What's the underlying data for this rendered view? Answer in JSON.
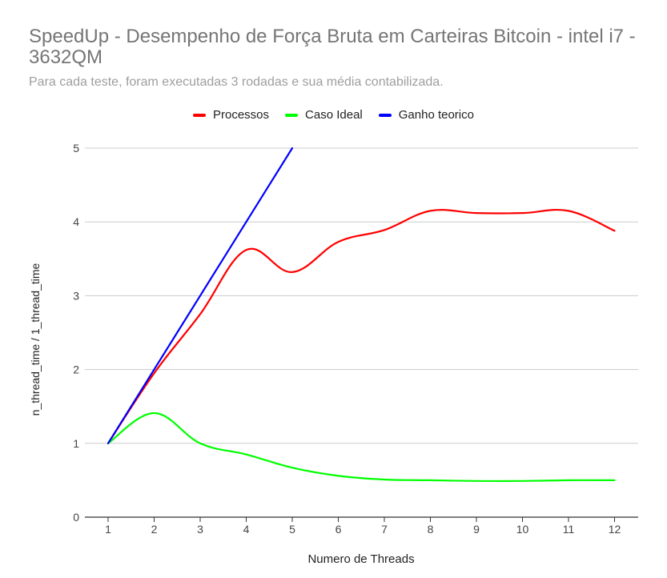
{
  "chart_data": {
    "type": "line",
    "title": "SpeedUp - Desempenho de Força Bruta em Carteiras Bitcoin - intel i7 - 3632QM",
    "subtitle": "Para cada teste, foram executadas 3 rodadas e sua média contabilizada.",
    "xlabel": "Numero de Threads",
    "ylabel": "n_thread_time / 1_thread_time",
    "x": [
      1,
      2,
      3,
      4,
      5,
      6,
      7,
      8,
      9,
      10,
      11,
      12
    ],
    "x_tick_labels": [
      "1",
      "2",
      "3",
      "4",
      "5",
      "6",
      "7",
      "8",
      "9",
      "10",
      "11",
      "12"
    ],
    "y_tick_labels": [
      "0",
      "1",
      "2",
      "3",
      "4",
      "5"
    ],
    "ylim": [
      0,
      5
    ],
    "grid": true,
    "legend_position": "top",
    "series": [
      {
        "name": "Processos",
        "color": "#ff0000",
        "x": [
          1,
          2,
          3,
          4,
          5,
          6,
          7,
          8,
          9,
          10,
          11,
          12
        ],
        "values": [
          1.0,
          1.95,
          2.75,
          3.62,
          3.32,
          3.73,
          3.89,
          4.15,
          4.12,
          4.12,
          4.15,
          3.88
        ]
      },
      {
        "name": "Caso Ideal",
        "color": "#00ff00",
        "x": [
          1,
          2,
          3,
          4,
          5,
          6,
          7,
          8,
          9,
          10,
          11,
          12
        ],
        "values": [
          1.0,
          1.41,
          1.0,
          0.85,
          0.67,
          0.56,
          0.51,
          0.5,
          0.49,
          0.49,
          0.5,
          0.5
        ]
      },
      {
        "name": "Ganho teorico",
        "color": "#0000ff",
        "x": [
          1,
          2,
          3,
          4,
          5
        ],
        "values": [
          1,
          2,
          3,
          4,
          5
        ]
      }
    ]
  }
}
